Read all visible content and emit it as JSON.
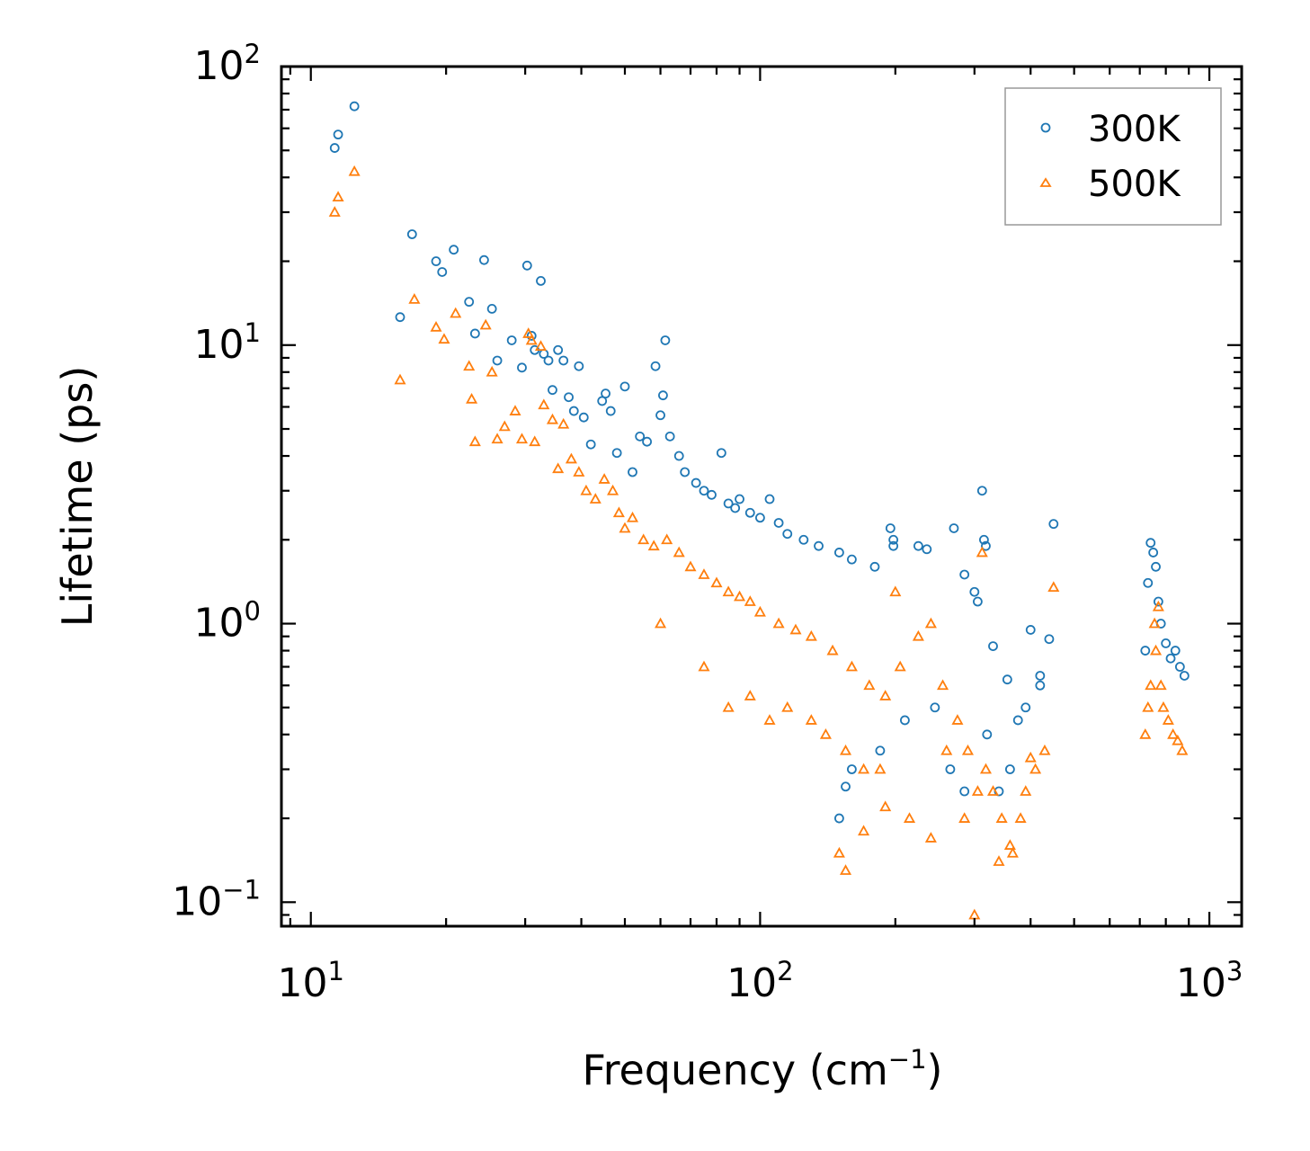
{
  "chart_data": {
    "type": "scatter",
    "title": "",
    "xlabel": "Frequency (cm",
    "xlabel_sup": "−1",
    "xlabel_tail": ")",
    "ylabel": "Lifetime (ps)",
    "xscale": "log",
    "yscale": "log",
    "xlim": [
      8.6,
      1180
    ],
    "ylim": [
      0.082,
      100
    ],
    "x_ticks": [
      {
        "value": 10,
        "base": "10",
        "exp": "1"
      },
      {
        "value": 100,
        "base": "10",
        "exp": "2"
      },
      {
        "value": 1000,
        "base": "10",
        "exp": "3"
      }
    ],
    "y_ticks": [
      {
        "value": 0.1,
        "base": "10",
        "exp": "−1"
      },
      {
        "value": 1,
        "base": "10",
        "exp": "0"
      },
      {
        "value": 10,
        "base": "10",
        "exp": "1"
      },
      {
        "value": 100,
        "base": "10",
        "exp": "2"
      }
    ],
    "legend": {
      "position": "top-right"
    },
    "series": [
      {
        "name": "300K",
        "marker": "circle",
        "color": "#1f77b4",
        "points": [
          [
            11.3,
            51
          ],
          [
            11.5,
            57
          ],
          [
            12.5,
            72
          ],
          [
            15.8,
            12.6
          ],
          [
            16.8,
            25
          ],
          [
            19,
            20
          ],
          [
            19.6,
            18.3
          ],
          [
            20.8,
            22
          ],
          [
            22.5,
            14.3
          ],
          [
            23.2,
            11
          ],
          [
            24.3,
            20.2
          ],
          [
            25.3,
            13.5
          ],
          [
            26,
            8.8
          ],
          [
            28,
            10.4
          ],
          [
            29.5,
            8.3
          ],
          [
            30.3,
            19.3
          ],
          [
            31,
            10.8
          ],
          [
            31.5,
            9.6
          ],
          [
            32.5,
            17
          ],
          [
            33,
            9.3
          ],
          [
            33.8,
            8.8
          ],
          [
            34.5,
            6.9
          ],
          [
            35.5,
            9.6
          ],
          [
            36.5,
            8.8
          ],
          [
            37.5,
            6.5
          ],
          [
            38.5,
            5.8
          ],
          [
            39.5,
            8.4
          ],
          [
            40.5,
            5.5
          ],
          [
            42,
            4.4
          ],
          [
            44.5,
            6.3
          ],
          [
            45.3,
            6.7
          ],
          [
            46.5,
            5.8
          ],
          [
            48,
            4.1
          ],
          [
            50,
            7.1
          ],
          [
            52,
            3.5
          ],
          [
            54,
            4.7
          ],
          [
            56,
            4.5
          ],
          [
            58.5,
            8.4
          ],
          [
            60,
            5.6
          ],
          [
            60.8,
            6.6
          ],
          [
            61.5,
            10.4
          ],
          [
            63,
            4.7
          ],
          [
            66,
            4.0
          ],
          [
            68,
            3.5
          ],
          [
            72,
            3.2
          ],
          [
            75,
            3.0
          ],
          [
            78,
            2.9
          ],
          [
            82,
            4.1
          ],
          [
            85,
            2.7
          ],
          [
            88,
            2.6
          ],
          [
            90,
            2.8
          ],
          [
            95,
            2.5
          ],
          [
            100,
            2.4
          ],
          [
            105,
            2.8
          ],
          [
            110,
            2.3
          ],
          [
            115,
            2.1
          ],
          [
            125,
            2.0
          ],
          [
            135,
            1.9
          ],
          [
            150,
            1.8
          ],
          [
            160,
            1.7
          ],
          [
            180,
            1.6
          ],
          [
            195,
            2.2
          ],
          [
            198,
            2.0
          ],
          [
            198,
            1.9
          ],
          [
            225,
            1.9
          ],
          [
            235,
            1.85
          ],
          [
            270,
            2.2
          ],
          [
            285,
            1.5
          ],
          [
            300,
            1.3
          ],
          [
            305,
            1.2
          ],
          [
            312,
            3.0
          ],
          [
            315,
            2.0
          ],
          [
            318,
            1.9
          ],
          [
            330,
            0.83
          ],
          [
            355,
            0.63
          ],
          [
            375,
            0.45
          ],
          [
            400,
            0.95
          ],
          [
            420,
            0.65
          ],
          [
            440,
            0.88
          ],
          [
            450,
            2.28
          ],
          [
            150,
            0.2
          ],
          [
            155,
            0.26
          ],
          [
            160,
            0.3
          ],
          [
            185,
            0.35
          ],
          [
            210,
            0.45
          ],
          [
            245,
            0.5
          ],
          [
            265,
            0.3
          ],
          [
            285,
            0.25
          ],
          [
            320,
            0.4
          ],
          [
            340,
            0.25
          ],
          [
            360,
            0.3
          ],
          [
            390,
            0.5
          ],
          [
            420,
            0.6
          ],
          [
            740,
            1.95
          ],
          [
            750,
            1.8
          ],
          [
            760,
            1.6
          ],
          [
            780,
            1.0
          ],
          [
            800,
            0.85
          ],
          [
            820,
            0.75
          ],
          [
            840,
            0.8
          ],
          [
            860,
            0.7
          ],
          [
            880,
            0.65
          ],
          [
            720,
            0.8
          ],
          [
            730,
            1.4
          ],
          [
            770,
            1.2
          ]
        ]
      },
      {
        "name": "500K",
        "marker": "triangle",
        "color": "#ff7f0e",
        "points": [
          [
            11.3,
            30
          ],
          [
            11.5,
            34
          ],
          [
            12.5,
            42
          ],
          [
            15.8,
            7.5
          ],
          [
            17,
            14.6
          ],
          [
            19,
            11.6
          ],
          [
            19.8,
            10.5
          ],
          [
            21,
            13
          ],
          [
            22.5,
            8.4
          ],
          [
            22.8,
            6.4
          ],
          [
            23.2,
            4.5
          ],
          [
            24.5,
            11.8
          ],
          [
            25.3,
            8
          ],
          [
            26,
            4.6
          ],
          [
            27,
            5.1
          ],
          [
            28.5,
            5.8
          ],
          [
            29.5,
            4.6
          ],
          [
            30.5,
            11
          ],
          [
            31,
            10.4
          ],
          [
            31.5,
            4.5
          ],
          [
            32.5,
            9.9
          ],
          [
            33,
            6.1
          ],
          [
            34.5,
            5.4
          ],
          [
            35.5,
            3.6
          ],
          [
            36.5,
            5.2
          ],
          [
            38,
            3.9
          ],
          [
            39.5,
            3.5
          ],
          [
            41,
            3.0
          ],
          [
            43,
            2.8
          ],
          [
            45,
            3.3
          ],
          [
            47,
            3.0
          ],
          [
            48.5,
            2.5
          ],
          [
            50,
            2.2
          ],
          [
            52,
            2.4
          ],
          [
            55,
            2.0
          ],
          [
            58,
            1.9
          ],
          [
            62,
            2.0
          ],
          [
            66,
            1.8
          ],
          [
            70,
            1.6
          ],
          [
            75,
            1.5
          ],
          [
            80,
            1.4
          ],
          [
            85,
            1.3
          ],
          [
            90,
            1.25
          ],
          [
            95,
            1.2
          ],
          [
            100,
            1.1
          ],
          [
            110,
            1.0
          ],
          [
            120,
            0.95
          ],
          [
            130,
            0.9
          ],
          [
            145,
            0.8
          ],
          [
            160,
            0.7
          ],
          [
            175,
            0.6
          ],
          [
            190,
            0.55
          ],
          [
            200,
            1.3
          ],
          [
            205,
            0.7
          ],
          [
            225,
            0.9
          ],
          [
            240,
            1.0
          ],
          [
            255,
            0.6
          ],
          [
            275,
            0.45
          ],
          [
            290,
            0.35
          ],
          [
            305,
            0.25
          ],
          [
            312,
            1.8
          ],
          [
            318,
            0.3
          ],
          [
            330,
            0.25
          ],
          [
            345,
            0.2
          ],
          [
            365,
            0.15
          ],
          [
            390,
            0.25
          ],
          [
            410,
            0.3
          ],
          [
            450,
            1.35
          ],
          [
            150,
            0.15
          ],
          [
            155,
            0.13
          ],
          [
            170,
            0.18
          ],
          [
            190,
            0.22
          ],
          [
            215,
            0.2
          ],
          [
            240,
            0.17
          ],
          [
            260,
            0.35
          ],
          [
            285,
            0.2
          ],
          [
            300,
            0.09
          ],
          [
            340,
            0.14
          ],
          [
            360,
            0.16
          ],
          [
            380,
            0.2
          ],
          [
            400,
            0.33
          ],
          [
            430,
            0.35
          ],
          [
            60,
            1.0
          ],
          [
            75,
            0.7
          ],
          [
            85,
            0.5
          ],
          [
            95,
            0.55
          ],
          [
            105,
            0.45
          ],
          [
            115,
            0.5
          ],
          [
            130,
            0.45
          ],
          [
            140,
            0.4
          ],
          [
            155,
            0.35
          ],
          [
            170,
            0.3
          ],
          [
            185,
            0.3
          ],
          [
            740,
            0.6
          ],
          [
            755,
            1.0
          ],
          [
            770,
            1.15
          ],
          [
            780,
            0.6
          ],
          [
            790,
            0.5
          ],
          [
            810,
            0.45
          ],
          [
            830,
            0.4
          ],
          [
            850,
            0.38
          ],
          [
            870,
            0.35
          ],
          [
            720,
            0.4
          ],
          [
            730,
            0.5
          ],
          [
            760,
            0.8
          ]
        ]
      }
    ]
  }
}
